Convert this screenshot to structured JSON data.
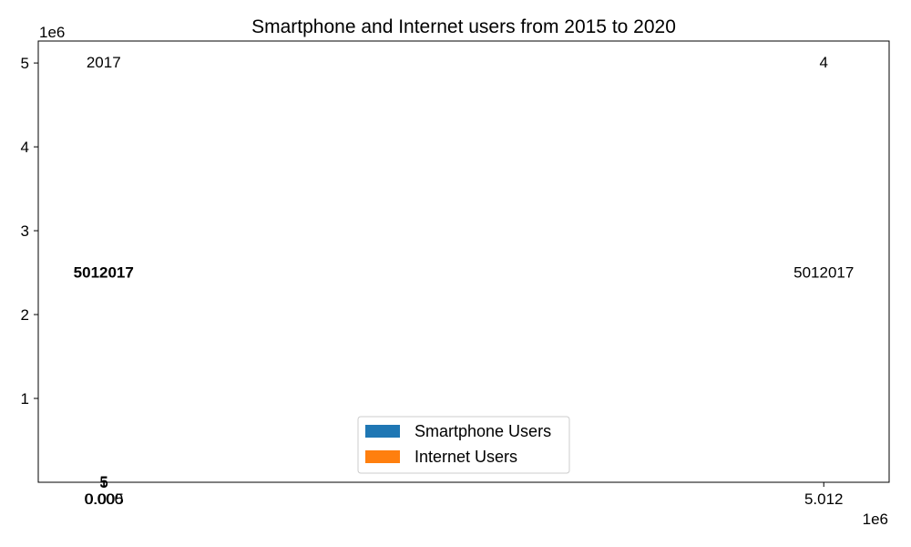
{
  "chart_data": {
    "type": "bar",
    "title": "Smartphone and Internet users from 2015 to 2020",
    "xlabel": "",
    "ylabel": "",
    "x_offset_label": "1e6",
    "y_offset_label": "1e6",
    "x_ticks": [
      {
        "value": 0,
        "label": "0.000"
      },
      {
        "value": 5000,
        "label": "0.005"
      },
      {
        "value": 5012000,
        "label": "5.012"
      }
    ],
    "y_ticks": [
      {
        "value": 1000000,
        "label": "1"
      },
      {
        "value": 2000000,
        "label": "2"
      },
      {
        "value": 3000000,
        "label": "3"
      },
      {
        "value": 4000000,
        "label": "4"
      },
      {
        "value": 5000000,
        "label": "5"
      }
    ],
    "xlim": [
      -455000,
      5467000
    ],
    "ylim": [
      0,
      5262000
    ],
    "grid": false,
    "legend_position": "lower-center",
    "series": [
      {
        "name": "Smartphone Users",
        "color": "#1f77b4"
      },
      {
        "name": "Internet Users",
        "color": "#ff7f0e"
      }
    ],
    "annotations": [
      {
        "text": "2017",
        "x": 0,
        "y": 5012017,
        "bold": false
      },
      {
        "text": "4",
        "x": 5012017,
        "y": 5012017,
        "bold": false
      },
      {
        "text": "5012017",
        "x": 0,
        "y": 2506008,
        "bold": true
      },
      {
        "text": "5012017",
        "x": 5012017,
        "y": 2506008,
        "bold": false
      },
      {
        "text": "5",
        "x": 2500,
        "y": 12000,
        "bold": false
      },
      {
        "text": "5",
        "x": 2500,
        "y": 0,
        "bold": false
      }
    ]
  }
}
